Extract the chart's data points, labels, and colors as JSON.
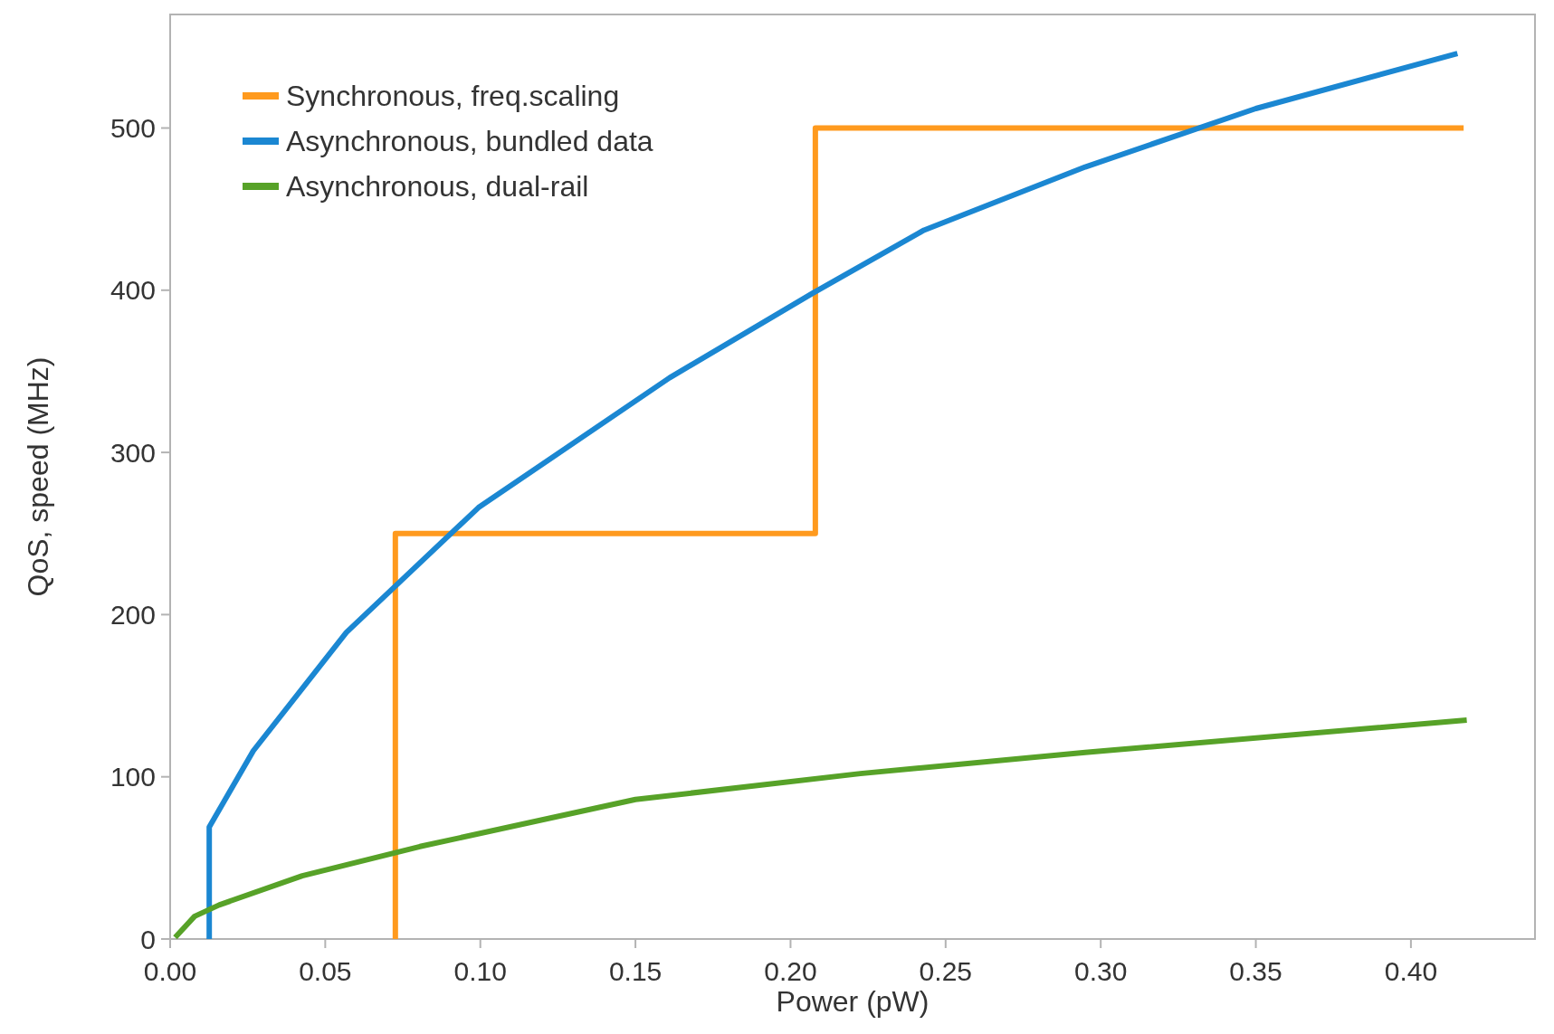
{
  "chart_data": {
    "type": "line",
    "xlabel": "Power (pW)",
    "ylabel": "QoS, speed (MHz)",
    "xlim": [
      0,
      0.44
    ],
    "ylim": [
      0,
      570
    ],
    "xticks": [
      {
        "value": 0,
        "label": "0.00"
      },
      {
        "value": 0.05,
        "label": "0.05"
      },
      {
        "value": 0.1,
        "label": "0.10"
      },
      {
        "value": 0.15,
        "label": "0.15"
      },
      {
        "value": 0.2,
        "label": "0.20"
      },
      {
        "value": 0.25,
        "label": "0.25"
      },
      {
        "value": 0.3,
        "label": "0.30"
      },
      {
        "value": 0.35,
        "label": "0.35"
      },
      {
        "value": 0.4,
        "label": "0.40"
      }
    ],
    "yticks": [
      0,
      100,
      200,
      300,
      400,
      500
    ],
    "grid": false,
    "legend": "top left",
    "marker": "none",
    "line_style": "solid",
    "series": [
      {
        "name": "Synchronous, freq.scaling",
        "color": "#ff9a1e",
        "x": [
          0.0726,
          0.0726,
          0.208,
          0.208,
          0.417
        ],
        "values": [
          0,
          250,
          250,
          500,
          500
        ]
      },
      {
        "name": "Asynchronous, bundled data",
        "color": "#1b87d2",
        "x": [
          0.0126,
          0.0126,
          0.0268,
          0.0568,
          0.0994,
          0.161,
          0.207,
          0.243,
          0.295,
          0.35,
          0.415
        ],
        "values": [
          0,
          69,
          116,
          189,
          266,
          346,
          398,
          437,
          476,
          512,
          546
        ]
      },
      {
        "name": "Asynchronous, dual-rail",
        "color": "#57a228",
        "x": [
          0.0016,
          0.0079,
          0.0158,
          0.0426,
          0.0805,
          0.15,
          0.2225,
          0.295,
          0.418
        ],
        "values": [
          1,
          14,
          21,
          39,
          57,
          86,
          102,
          115,
          135
        ]
      }
    ]
  }
}
